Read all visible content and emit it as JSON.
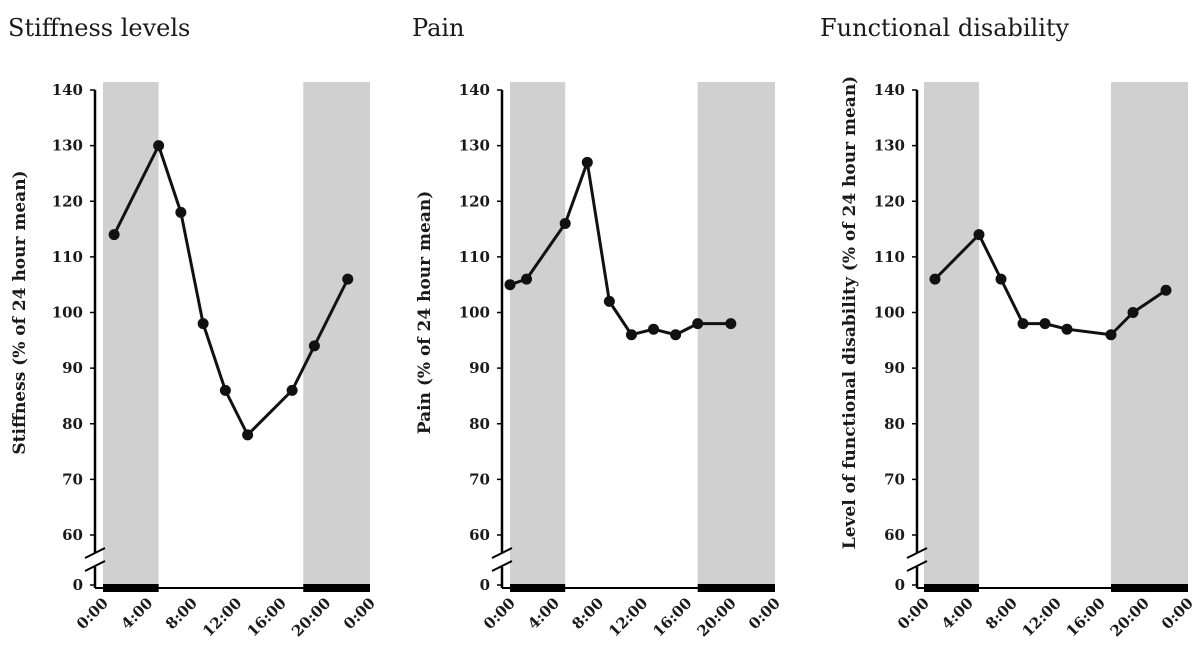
{
  "colors": {
    "shading": "#d0d0d0",
    "line": "#111111",
    "axis": "#000000"
  },
  "chart_data": [
    {
      "type": "line",
      "title": "Stiffness levels",
      "xlabel": "",
      "ylabel": "Stiffness (% of 24 hour mean)",
      "x_tick_labels": [
        "0:00",
        "4:00",
        "8:00",
        "12:00",
        "16:00",
        "20:00",
        "0:00"
      ],
      "x_range_hours": [
        0,
        24
      ],
      "y_tick_labels": [
        "0",
        "60",
        "70",
        "80",
        "90",
        "100",
        "110",
        "120",
        "130",
        "140"
      ],
      "ylim": [
        60,
        140
      ],
      "axis_break": true,
      "shaded_periods_hours": [
        [
          0,
          5
        ],
        [
          18,
          24
        ]
      ],
      "series": [
        {
          "x_hours": [
            1,
            5,
            7,
            9,
            11,
            13,
            17,
            19,
            22
          ],
          "values": [
            114,
            130,
            118,
            98,
            86,
            78,
            86,
            94,
            106
          ]
        }
      ]
    },
    {
      "type": "line",
      "title": "Pain",
      "xlabel": "",
      "ylabel": "Pain (% of 24 hour mean)",
      "x_tick_labels": [
        "0:00",
        "4:00",
        "8:00",
        "12:00",
        "16:00",
        "20:00",
        "0:00"
      ],
      "x_range_hours": [
        0,
        24
      ],
      "y_tick_labels": [
        "0",
        "60",
        "70",
        "80",
        "90",
        "100",
        "110",
        "120",
        "130",
        "140"
      ],
      "ylim": [
        60,
        140
      ],
      "axis_break": true,
      "shaded_periods_hours": [
        [
          0,
          5
        ],
        [
          17,
          24
        ]
      ],
      "series": [
        {
          "x_hours": [
            0,
            1.5,
            5,
            7,
            9,
            11,
            13,
            15,
            17,
            20
          ],
          "values": [
            105,
            106,
            116,
            127,
            102,
            96,
            97,
            96,
            98,
            98
          ]
        }
      ]
    },
    {
      "type": "line",
      "title": "Functional disability",
      "xlabel": "",
      "ylabel": "Level of functional disability (% of 24 hour mean)",
      "x_tick_labels": [
        "0:00",
        "4:00",
        "8:00",
        "12:00",
        "16:00",
        "20:00",
        "0:00"
      ],
      "x_range_hours": [
        0,
        24
      ],
      "y_tick_labels": [
        "0",
        "60",
        "70",
        "80",
        "90",
        "100",
        "110",
        "120",
        "130",
        "140"
      ],
      "ylim": [
        60,
        140
      ],
      "axis_break": true,
      "shaded_periods_hours": [
        [
          0,
          5
        ],
        [
          17,
          24
        ]
      ],
      "series": [
        {
          "x_hours": [
            1,
            5,
            7,
            9,
            11,
            13,
            17,
            19,
            22
          ],
          "values": [
            106,
            114,
            106,
            98,
            98,
            97,
            96,
            100,
            104
          ]
        }
      ]
    }
  ]
}
